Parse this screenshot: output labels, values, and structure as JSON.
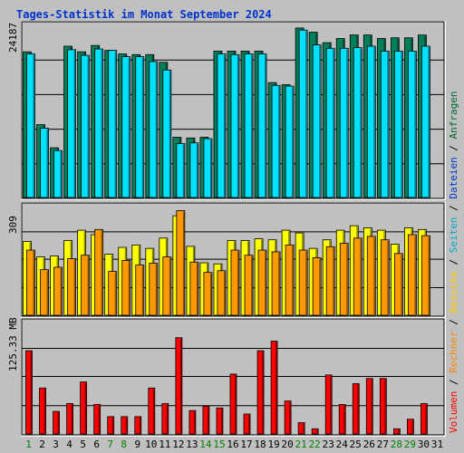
{
  "chart_data": {
    "type": "bar",
    "title": "Tages-Statistik im Monat September 2024",
    "categories": [
      "1",
      "2",
      "3",
      "4",
      "5",
      "6",
      "7",
      "8",
      "9",
      "10",
      "11",
      "12",
      "13",
      "14",
      "15",
      "16",
      "17",
      "18",
      "19",
      "20",
      "21",
      "22",
      "23",
      "24",
      "25",
      "26",
      "27",
      "28",
      "29",
      "30",
      "31"
    ],
    "weekend_days": [
      "1",
      "7",
      "8",
      "14",
      "15",
      "21",
      "22",
      "28",
      "29"
    ],
    "side_legend": [
      {
        "text": "Anfragen",
        "color": "#006633"
      },
      {
        "text": "Dateien",
        "color": "#0033cc"
      },
      {
        "text": "Seiten",
        "color": "#00aacc"
      },
      {
        "text": "Besuche",
        "color": "#ffcc00"
      },
      {
        "text": "Rechner",
        "color": "#ff8800"
      },
      {
        "text": "Volumen",
        "color": "#ff0000"
      }
    ],
    "panels": [
      {
        "name": "hits",
        "ymax_label": "24187",
        "ymax": 24187,
        "series": [
          {
            "name": "Anfragen",
            "color": "#00805a",
            "values": [
              20800,
              10400,
              7100,
              21600,
              20800,
              21700,
              21000,
              20500,
              20400,
              20400,
              19300,
              8600,
              8500,
              8600,
              20900,
              20900,
              20900,
              20900,
              16400,
              16100,
              24200,
              23600,
              22100,
              22700,
              23200,
              23200,
              22700,
              22800,
              22800,
              23200,
              0
            ]
          },
          {
            "name": "Seiten",
            "color": "#00e0ff",
            "values": [
              20500,
              9900,
              6700,
              21100,
              20300,
              21200,
              21000,
              20100,
              20100,
              19400,
              18200,
              7700,
              7800,
              8400,
              20500,
              20400,
              20500,
              20500,
              16000,
              15900,
              23900,
              21800,
              21300,
              21300,
              21400,
              21600,
              20900,
              20900,
              20900,
              21600,
              0
            ]
          }
        ]
      },
      {
        "name": "visits",
        "ymax_label": "309",
        "ymax": 309,
        "series": [
          {
            "name": "Besuche",
            "color": "#ffff00",
            "values": [
              215,
              170,
              173,
              218,
              248,
              235,
              178,
              198,
              205,
              195,
              225,
              290,
              201,
              153,
              150,
              218,
              218,
              223,
              220,
              248,
              240,
              195,
              220,
              248,
              261,
              255,
              248,
              207,
              255,
              250,
              0
            ]
          },
          {
            "name": "Rechner",
            "color": "#ff9900",
            "values": [
              190,
              133,
              140,
              165,
              175,
              250,
              128,
              160,
              147,
              152,
              170,
              305,
              155,
              125,
              130,
              190,
              175,
              190,
              185,
              205,
              190,
              168,
              200,
              210,
              225,
              230,
              220,
              180,
              235,
              232,
              0
            ]
          }
        ]
      },
      {
        "name": "volume",
        "ymax_label": "125.33 MB",
        "ymax": 125.33,
        "series": [
          {
            "name": "Volumen",
            "color": "#ff0000",
            "values": [
              96,
              53,
              26,
              35,
              60,
              34,
              20,
              20,
              20,
              53,
              35,
              111,
              27,
              32,
              30,
              69,
              23,
              96,
              107,
              38,
              13,
              6,
              68,
              34,
              58,
              64,
              64,
              6,
              17,
              35,
              0
            ]
          }
        ]
      }
    ]
  }
}
